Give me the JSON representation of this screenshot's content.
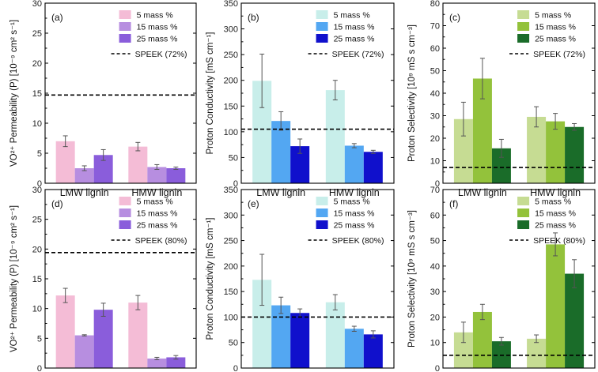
{
  "chart_data": [
    {
      "type": "bar",
      "panel_label": "(a)",
      "categories": [
        "LMW lignin",
        "HMW lignin"
      ],
      "ylabel_main": "VO²⁺ Permeability (P) [10⁻⁹ cm² s⁻¹]",
      "ylim": [
        0,
        30
      ],
      "yticks": [
        0,
        5,
        10,
        15,
        20,
        25,
        30
      ],
      "reference": {
        "label": "SPEEK (72%)",
        "value": 14.7
      },
      "series": [
        {
          "name": "5 mass %",
          "color": "#f4bcd6",
          "values": [
            7.0,
            6.1
          ],
          "errors": [
            0.9,
            0.7
          ]
        },
        {
          "name": "15 mass %",
          "color": "#b78ee0",
          "values": [
            2.5,
            2.7
          ],
          "errors": [
            0.4,
            0.4
          ]
        },
        {
          "name": "25 mass %",
          "color": "#8a5ddb",
          "values": [
            4.7,
            2.5
          ],
          "errors": [
            0.9,
            0.2
          ]
        }
      ]
    },
    {
      "type": "bar",
      "panel_label": "(b)",
      "categories": [
        "LMW lignin",
        "HMW lignin"
      ],
      "ylabel_main": "Proton Conductivity [mS cm⁻¹]",
      "ylim": [
        0,
        350
      ],
      "yticks": [
        0,
        50,
        100,
        150,
        200,
        250,
        300,
        350
      ],
      "reference": {
        "label": "SPEEK (72%)",
        "value": 105
      },
      "series": [
        {
          "name": "5 mass %",
          "color": "#c8eeea",
          "values": [
            199,
            181
          ],
          "errors": [
            52,
            19
          ]
        },
        {
          "name": "15 mass %",
          "color": "#53a7f2",
          "values": [
            121,
            73
          ],
          "errors": [
            18,
            4
          ]
        },
        {
          "name": "25 mass %",
          "color": "#1010cc",
          "values": [
            72,
            61
          ],
          "errors": [
            14,
            3
          ]
        }
      ]
    },
    {
      "type": "bar",
      "panel_label": "(c)",
      "categories": [
        "LMW lignin",
        "HMW lignin"
      ],
      "ylabel_main": "Proton Selectivity [10⁹ mS s cm⁻³]",
      "ylim": [
        0,
        80
      ],
      "yticks": [
        0,
        10,
        20,
        30,
        40,
        50,
        60,
        70,
        80
      ],
      "reference": {
        "label": "SPEEK (72%)",
        "value": 7
      },
      "series": [
        {
          "name": "5 mass %",
          "color": "#c6dc93",
          "values": [
            28.5,
            29.5
          ],
          "errors": [
            7.5,
            4.5
          ]
        },
        {
          "name": "15 mass %",
          "color": "#93c23b",
          "values": [
            46.5,
            27.5
          ],
          "errors": [
            9,
            3.5
          ]
        },
        {
          "name": "25 mass %",
          "color": "#1a6c29",
          "values": [
            15.5,
            25
          ],
          "errors": [
            4,
            1.5
          ]
        }
      ]
    },
    {
      "type": "bar",
      "panel_label": "(d)",
      "categories": [
        "LMW lignin",
        "HMW lignin"
      ],
      "ylabel_main": "VO²⁺ Permeability (P) [10⁻⁹ cm² s⁻¹]",
      "ylim": [
        0,
        30
      ],
      "yticks": [
        0,
        5,
        10,
        15,
        20,
        25,
        30
      ],
      "reference": {
        "label": "SPEEK (80%)",
        "value": 19.4
      },
      "series": [
        {
          "name": "5 mass %",
          "color": "#f4bcd6",
          "values": [
            12.2,
            11.0
          ],
          "errors": [
            1.2,
            1.2
          ]
        },
        {
          "name": "15 mass %",
          "color": "#b78ee0",
          "values": [
            5.5,
            1.6
          ],
          "errors": [
            0.1,
            0.2
          ]
        },
        {
          "name": "25 mass %",
          "color": "#8a5ddb",
          "values": [
            9.8,
            1.8
          ],
          "errors": [
            1.1,
            0.3
          ]
        }
      ]
    },
    {
      "type": "bar",
      "panel_label": "(e)",
      "categories": [
        "LMW lignin",
        "HMW lignin"
      ],
      "ylabel_main": "Proton Conductivity [mS cm⁻¹]",
      "ylim": [
        0,
        350
      ],
      "yticks": [
        0,
        50,
        100,
        150,
        200,
        250,
        300,
        350
      ],
      "reference": {
        "label": "SPEEK (80%)",
        "value": 100
      },
      "series": [
        {
          "name": "5 mass %",
          "color": "#c8eeea",
          "values": [
            173,
            129
          ],
          "errors": [
            50,
            15
          ]
        },
        {
          "name": "15 mass %",
          "color": "#53a7f2",
          "values": [
            123,
            77
          ],
          "errors": [
            16,
            5
          ]
        },
        {
          "name": "25 mass %",
          "color": "#1010cc",
          "values": [
            108,
            66
          ],
          "errors": [
            8,
            7
          ]
        }
      ]
    },
    {
      "type": "bar",
      "panel_label": "(f)",
      "categories": [
        "LMW lignin",
        "HMW lignin"
      ],
      "ylabel_main": "Proton Selectivity [10⁹ mS s cm⁻³]",
      "ylim": [
        0,
        70
      ],
      "yticks": [
        0,
        10,
        20,
        30,
        40,
        50,
        60,
        70
      ],
      "reference": {
        "label": "SPEEK (80%)",
        "value": 5
      },
      "series": [
        {
          "name": "5 mass %",
          "color": "#c6dc93",
          "values": [
            14,
            11.5
          ],
          "errors": [
            4,
            1.5
          ]
        },
        {
          "name": "15 mass %",
          "color": "#93c23b",
          "values": [
            22,
            48.5
          ],
          "errors": [
            3,
            4.5
          ]
        },
        {
          "name": "25 mass %",
          "color": "#1a6c29",
          "values": [
            10.5,
            37
          ],
          "errors": [
            1.5,
            5.5
          ]
        }
      ]
    }
  ]
}
